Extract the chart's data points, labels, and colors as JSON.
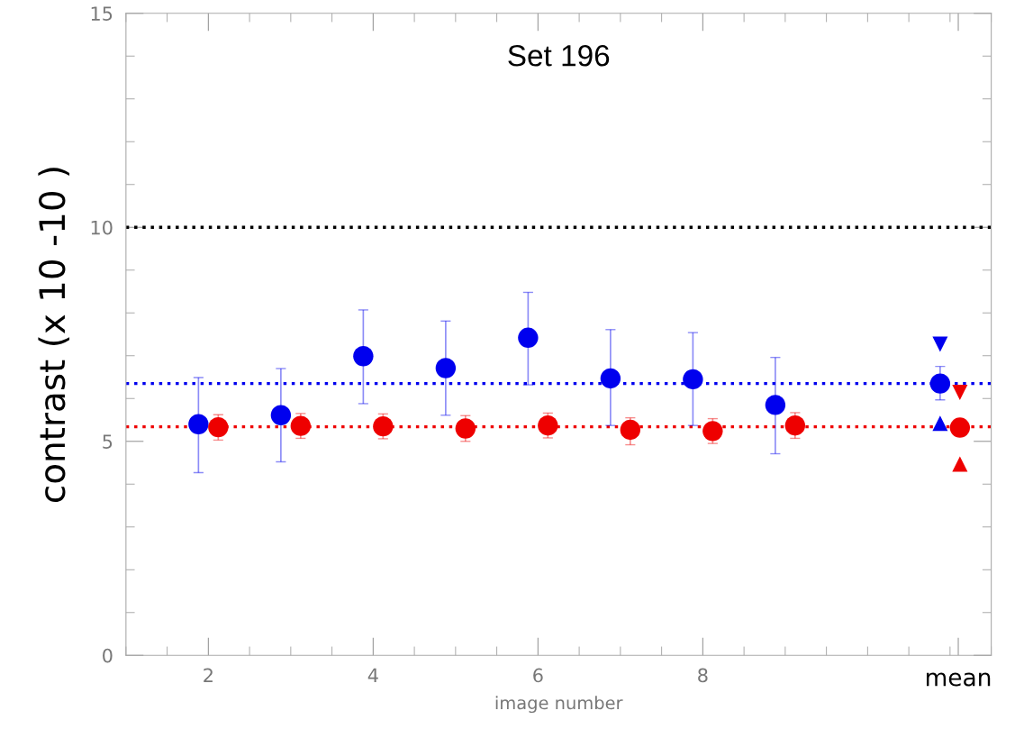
{
  "chart_data": {
    "type": "scatter",
    "title": "Set 196",
    "xlabel": "image number",
    "ylabel": "contrast (x 10 -10 )",
    "xlim": [
      1,
      11.5
    ],
    "xticks": [
      2,
      4,
      6,
      8,
      {
        "value": 11.1,
        "label": "mean"
      }
    ],
    "ylim": [
      0,
      15
    ],
    "yticks": [
      0,
      5,
      10,
      15
    ],
    "grid": false,
    "legend": false,
    "series": [
      {
        "color": "#0000ee",
        "marker": "circle",
        "x": [
          1.88,
          2.88,
          3.88,
          4.88,
          5.88,
          6.88,
          7.88,
          8.88,
          10.88
        ],
        "values": [
          5.4,
          5.61,
          6.99,
          6.71,
          7.42,
          6.47,
          6.45,
          5.85,
          6.35
        ],
        "errors": [
          [
            4.27,
            6.49
          ],
          [
            4.52,
            6.7
          ],
          [
            5.88,
            8.07
          ],
          [
            5.61,
            7.81
          ],
          [
            6.32,
            8.48
          ],
          [
            5.37,
            7.61
          ],
          [
            5.37,
            7.54
          ],
          [
            4.71,
            6.96
          ],
          [
            5.97,
            6.75
          ]
        ]
      },
      {
        "color": "#ee0000",
        "marker": "circle",
        "x": [
          2.12,
          3.12,
          4.12,
          5.12,
          6.12,
          7.12,
          8.12,
          9.12,
          11.12
        ],
        "values": [
          5.33,
          5.36,
          5.35,
          5.3,
          5.37,
          5.27,
          5.24,
          5.37,
          5.32
        ],
        "errors": [
          [
            5.03,
            5.62
          ],
          [
            5.07,
            5.65
          ],
          [
            5.06,
            5.64
          ],
          [
            5.0,
            5.6
          ],
          [
            5.08,
            5.66
          ],
          [
            4.92,
            5.55
          ],
          [
            4.95,
            5.53
          ],
          [
            5.07,
            5.67
          ],
          null
        ]
      },
      {
        "color": "#0000ee",
        "marker": "triangle_down",
        "x": [
          10.88
        ],
        "values": [
          7.27
        ]
      },
      {
        "color": "#0000ee",
        "marker": "triangle",
        "x": [
          10.88
        ],
        "values": [
          5.42
        ]
      },
      {
        "color": "#ee0000",
        "marker": "triangle_down",
        "x": [
          11.12
        ],
        "values": [
          6.14
        ]
      },
      {
        "color": "#ee0000",
        "marker": "triangle",
        "x": [
          11.12
        ],
        "values": [
          4.47
        ]
      }
    ],
    "ref_lines": [
      {
        "axis": "y",
        "value": 10,
        "label": null,
        "color": "#000000",
        "line_style": "dotted"
      },
      {
        "axis": "y",
        "value": 6.35,
        "label": null,
        "color": "#0000ee",
        "line_style": "dotted"
      },
      {
        "axis": "y",
        "value": 5.34,
        "label": null,
        "color": "#ee0000",
        "line_style": "dotted"
      }
    ]
  }
}
